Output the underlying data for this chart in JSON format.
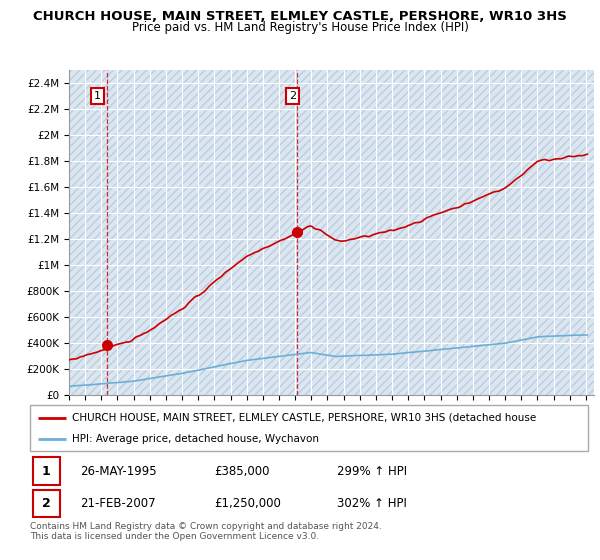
{
  "title": "CHURCH HOUSE, MAIN STREET, ELMLEY CASTLE, PERSHORE, WR10 3HS",
  "subtitle": "Price paid vs. HM Land Registry's House Price Index (HPI)",
  "ylim": [
    0,
    2500000
  ],
  "yticks": [
    0,
    200000,
    400000,
    600000,
    800000,
    1000000,
    1200000,
    1400000,
    1600000,
    1800000,
    2000000,
    2200000,
    2400000
  ],
  "ytick_labels": [
    "£0",
    "£200K",
    "£400K",
    "£600K",
    "£800K",
    "£1M",
    "£1.2M",
    "£1.4M",
    "£1.6M",
    "£1.8M",
    "£2M",
    "£2.2M",
    "£2.4M"
  ],
  "xlim_start": 1993.0,
  "xlim_end": 2025.5,
  "sale1_x": 1995.38,
  "sale1_y": 385000,
  "sale2_x": 2007.12,
  "sale2_y": 1250000,
  "red_line_color": "#cc0000",
  "blue_line_color": "#6baed6",
  "plot_bg_color": "#dce6f1",
  "grid_color": "#ffffff",
  "hatch_color": "#c8d8e8",
  "legend_label_red": "CHURCH HOUSE, MAIN STREET, ELMLEY CASTLE, PERSHORE, WR10 3HS (detached house",
  "legend_label_blue": "HPI: Average price, detached house, Wychavon",
  "table_row1_num": "1",
  "table_row1_date": "26-MAY-1995",
  "table_row1_price": "£385,000",
  "table_row1_hpi": "299% ↑ HPI",
  "table_row2_num": "2",
  "table_row2_date": "21-FEB-2007",
  "table_row2_price": "£1,250,000",
  "table_row2_hpi": "302% ↑ HPI",
  "footer": "Contains HM Land Registry data © Crown copyright and database right 2024.\nThis data is licensed under the Open Government Licence v3.0.",
  "xticks": [
    1993,
    1994,
    1995,
    1996,
    1997,
    1998,
    1999,
    2000,
    2001,
    2002,
    2003,
    2004,
    2005,
    2006,
    2007,
    2008,
    2009,
    2010,
    2011,
    2012,
    2013,
    2014,
    2015,
    2016,
    2017,
    2018,
    2019,
    2020,
    2021,
    2022,
    2023,
    2024,
    2025
  ]
}
